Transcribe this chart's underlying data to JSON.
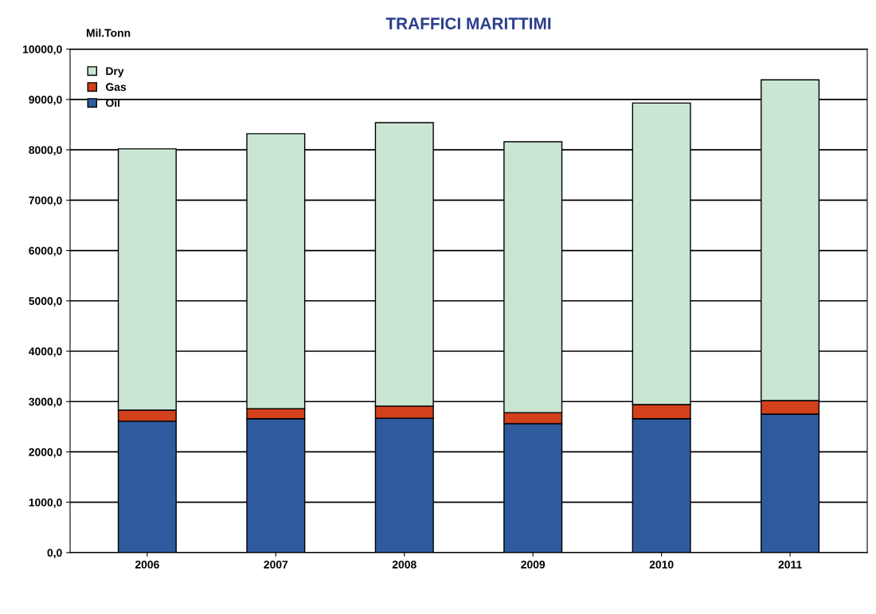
{
  "chart_data": {
    "type": "bar",
    "title": "TRAFFICI MARITTIMI",
    "ylabel": "Mil.Tonn",
    "categories": [
      "2006",
      "2007",
      "2008",
      "2009",
      "2010",
      "2011"
    ],
    "stacked": true,
    "series": [
      {
        "name": "Oil",
        "color": "#2f5b9e",
        "values": [
          2610,
          2660,
          2670,
          2560,
          2660,
          2750
        ]
      },
      {
        "name": "Gas",
        "color": "#d2401c",
        "values": [
          220,
          200,
          240,
          220,
          280,
          270
        ]
      },
      {
        "name": "Dry",
        "color": "#c9e6d3",
        "values": [
          5190,
          5460,
          5630,
          5380,
          5990,
          6370
        ]
      }
    ],
    "ylim": [
      0,
      10000
    ],
    "yticks": [
      {
        "value": 0,
        "label": "0,0"
      },
      {
        "value": 1000,
        "label": "1000,0"
      },
      {
        "value": 2000,
        "label": "2000,0"
      },
      {
        "value": 3000,
        "label": "3000,0"
      },
      {
        "value": 4000,
        "label": "4000,0"
      },
      {
        "value": 5000,
        "label": "5000,0"
      },
      {
        "value": 6000,
        "label": "6000,0"
      },
      {
        "value": 7000,
        "label": "7000,0"
      },
      {
        "value": 8000,
        "label": "8000,0"
      },
      {
        "value": 9000,
        "label": "9000,0"
      },
      {
        "value": 10000,
        "label": "10000,0"
      }
    ],
    "grid": "y",
    "legend": "top left"
  }
}
